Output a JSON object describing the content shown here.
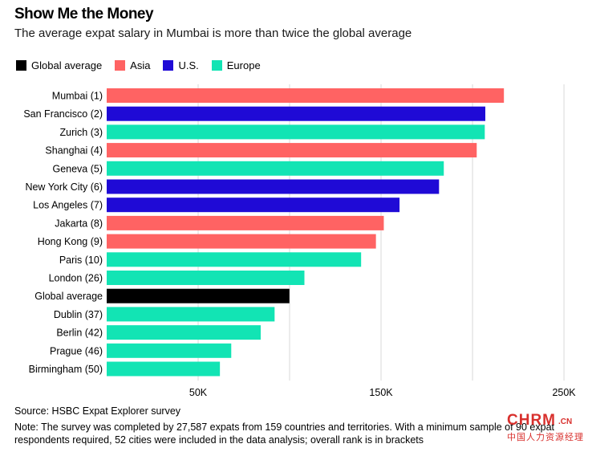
{
  "title": "Show Me the Money",
  "subtitle": "The average expat salary in Mumbai is more than twice the global average",
  "legend": [
    {
      "label": "Global average",
      "color": "#000000",
      "key": "global"
    },
    {
      "label": "Asia",
      "color": "#ff6363",
      "key": "asia"
    },
    {
      "label": "U.S.",
      "color": "#1f0ad6",
      "key": "us"
    },
    {
      "label": "Europe",
      "color": "#12e4b4",
      "key": "europe"
    }
  ],
  "chart_data": {
    "type": "bar",
    "orientation": "horizontal",
    "title": "Show Me the Money",
    "xlabel": "",
    "ylabel": "",
    "xlim": [
      0,
      270000
    ],
    "x_ticks": [
      {
        "value": 50000,
        "label": "50K"
      },
      {
        "value": 150000,
        "label": "150K"
      },
      {
        "value": 250000,
        "label": "250K"
      }
    ],
    "gridlines": [
      50000,
      100000,
      150000,
      200000,
      250000
    ],
    "categories": [
      "Mumbai (1)",
      "San Francisco (2)",
      "Zurich (3)",
      "Shanghai (4)",
      "Geneva (5)",
      "New York City (6)",
      "Los Angeles (7)",
      "Jakarta (8)",
      "Hong Kong (9)",
      "Paris (10)",
      "London (26)",
      "Global average",
      "Dublin (37)",
      "Berlin (42)",
      "Prague (46)",
      "Birmingham (50)"
    ],
    "values": [
      217165,
      207000,
      206700,
      202300,
      184300,
      181700,
      160100,
      151500,
      147200,
      139100,
      108100,
      99900,
      91800,
      84200,
      68100,
      61900
    ],
    "regions": [
      "asia",
      "us",
      "europe",
      "asia",
      "europe",
      "us",
      "us",
      "asia",
      "asia",
      "europe",
      "europe",
      "global",
      "europe",
      "europe",
      "europe",
      "europe"
    ]
  },
  "source": "Source: HSBC Expat Explorer survey",
  "note": "Note: The survey was completed by 27,587 expats from 159 countries and territories. With a minimum sample of 90 expat respondents required, 52 cities were included in the data analysis; overall rank is in brackets",
  "watermark": {
    "logo": "CHRM",
    "suffix": ".CN",
    "sub": "中国人力资源经理"
  }
}
